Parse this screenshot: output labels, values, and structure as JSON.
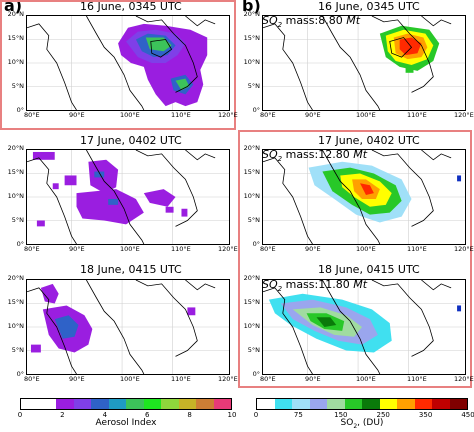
{
  "labels": {
    "a": "a)",
    "b": "b)"
  },
  "panels": {
    "a1": {
      "title": "16 June, 0345 UTC"
    },
    "a2": {
      "title": "17 June, 0402 UTC"
    },
    "a3": {
      "title": "18 June, 0415 UTC"
    },
    "b1": {
      "title": "16 June, 0345 UTC",
      "mass_label": "SO",
      "mass_sub": "2",
      "mass_text": " mass:8.80 ",
      "mass_unit": "Mt"
    },
    "b2": {
      "title": "17 June, 0402 UTC",
      "mass_label": "SO",
      "mass_sub": "2",
      "mass_text": " mass:12.80 ",
      "mass_unit": "Mt"
    },
    "b3": {
      "title": "18 June, 0415 UTC",
      "mass_label": "SO",
      "mass_sub": "2",
      "mass_text": " mass:11.80 ",
      "mass_unit": "Mt"
    }
  },
  "axes": {
    "x_ticks": [
      "80°E",
      "90°E",
      "100°E",
      "110°E",
      "120°E"
    ],
    "y_ticks": [
      "0°",
      "5°N",
      "10°N",
      "15°N",
      "20°N"
    ]
  },
  "colorbars": {
    "aerosol": {
      "label": "Aerosol Index",
      "ticks": [
        "0",
        "2",
        "4",
        "6",
        "8",
        "10"
      ],
      "colors": [
        "#ffffff",
        "#ffffff",
        "#9a1ee0",
        "#7f3fe8",
        "#2f62c8",
        "#1f9bc4",
        "#3cc35a",
        "#1ee620",
        "#8fd73c",
        "#c6b327",
        "#cc7e35",
        "#e73a78"
      ]
    },
    "so2": {
      "label_main": "SO",
      "label_sub": "2",
      "label_rest": ", (DU)",
      "ticks": [
        "0",
        "75",
        "150",
        "250",
        "350",
        "450"
      ],
      "colors": [
        "#ffffff",
        "#40e0f0",
        "#a0e0f8",
        "#9aa6ee",
        "#a0dca0",
        "#28c828",
        "#0a7a0a",
        "#ffff00",
        "#ffa000",
        "#ff2a00",
        "#c00000",
        "#800000"
      ]
    }
  },
  "colors": {
    "frame": "#e88080",
    "coast": "#000000"
  }
}
